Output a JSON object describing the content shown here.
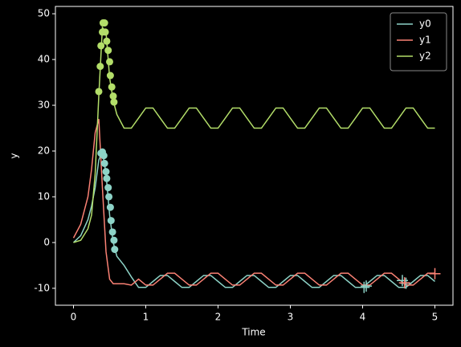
{
  "chart_data": {
    "type": "line",
    "xlabel": "Time",
    "ylabel": "y",
    "x": [
      0,
      0.1,
      0.2,
      0.25,
      0.3,
      0.35,
      0.4,
      0.45,
      0.5,
      0.55,
      0.6,
      0.7,
      0.8,
      0.9,
      1.0,
      1.1,
      1.2,
      1.3,
      1.4,
      1.5,
      1.6,
      1.7,
      1.8,
      1.9,
      2.0,
      2.1,
      2.2,
      2.3,
      2.4,
      2.5,
      2.6,
      2.7,
      2.8,
      2.9,
      3.0,
      3.1,
      3.2,
      3.3,
      3.4,
      3.5,
      3.6,
      3.7,
      3.8,
      3.9,
      4.0,
      4.1,
      4.2,
      4.3,
      4.4,
      4.5,
      4.6,
      4.7,
      4.8,
      4.9,
      5.0
    ],
    "series": [
      {
        "name": "y0",
        "color": "#8dd3c7",
        "values": [
          0,
          1.5,
          5,
          8,
          12,
          18,
          20,
          15,
          6,
          0,
          -3,
          -5,
          -7.5,
          -9.8,
          -9.8,
          -8.5,
          -7.2,
          -7.2,
          -8.5,
          -9.8,
          -9.8,
          -8.5,
          -7.2,
          -7.2,
          -8.5,
          -9.8,
          -9.8,
          -8.5,
          -7.2,
          -7.2,
          -8.5,
          -9.8,
          -9.8,
          -8.5,
          -7.2,
          -7.2,
          -8.5,
          -9.8,
          -9.8,
          -8.5,
          -7.2,
          -7.2,
          -8.5,
          -9.8,
          -9.8,
          -8.5,
          -7.2,
          -7.2,
          -8.5,
          -9.8,
          -9.8,
          -8.5,
          -7.2,
          -7.2,
          -8.5
        ]
      },
      {
        "name": "y1",
        "color": "#fa8174",
        "values": [
          1,
          4,
          10,
          16,
          24,
          27,
          12,
          -2,
          -8,
          -9,
          -9,
          -9,
          -9.3,
          -8,
          -9.3,
          -9.3,
          -8,
          -6.7,
          -6.7,
          -8,
          -9.3,
          -9.3,
          -8,
          -6.7,
          -6.7,
          -8,
          -9.3,
          -9.3,
          -8,
          -6.7,
          -6.7,
          -8,
          -9.3,
          -9.3,
          -8,
          -6.7,
          -6.7,
          -8,
          -9.3,
          -9.3,
          -8,
          -6.7,
          -6.7,
          -8,
          -9.3,
          -9.3,
          -8,
          -6.7,
          -6.7,
          -8,
          -9.3,
          -9.3,
          -8,
          -6.7,
          -6.7
        ]
      },
      {
        "name": "y2",
        "color": "#b3de69",
        "values": [
          0,
          0.5,
          3,
          6,
          15,
          32,
          47,
          46,
          36,
          31,
          28,
          25,
          25,
          27.2,
          29.4,
          29.4,
          27.2,
          25,
          25,
          27.2,
          29.4,
          29.4,
          27.2,
          25,
          25,
          27.2,
          29.4,
          29.4,
          27.2,
          25,
          25,
          27.2,
          29.4,
          29.4,
          27.2,
          25,
          25,
          27.2,
          29.4,
          29.4,
          27.2,
          25,
          25,
          27.2,
          29.4,
          29.4,
          27.2,
          25,
          25,
          27.2,
          29.4,
          29.4,
          27.2,
          25,
          25
        ]
      }
    ],
    "markers": [
      {
        "marker": "circle",
        "color": "#b3de69",
        "x": [
          0.35,
          0.37,
          0.38,
          0.4,
          0.41,
          0.43,
          0.44,
          0.46,
          0.48,
          0.5,
          0.51,
          0.53,
          0.55,
          0.56
        ],
        "y": [
          33,
          38.5,
          43,
          46,
          48,
          48,
          46,
          44,
          42,
          39.5,
          36.5,
          34,
          32,
          30.7
        ]
      },
      {
        "marker": "circle",
        "color": "#8dd3c7",
        "x": [
          0.38,
          0.4,
          0.42,
          0.43,
          0.45,
          0.46,
          0.48,
          0.49,
          0.51,
          0.52,
          0.54,
          0.56,
          0.57
        ],
        "y": [
          19.5,
          19.8,
          19,
          17.3,
          15.5,
          14,
          12,
          10,
          7.7,
          4.8,
          2.3,
          0.5,
          -1.5
        ]
      },
      {
        "marker": "plus",
        "color": "#8dd3c7",
        "x": [
          4.02,
          4.05,
          4.55,
          4.6
        ],
        "y": [
          -9.8,
          -9.5,
          -8.3,
          -8.9
        ]
      },
      {
        "marker": "plus",
        "color": "#fa8174",
        "x": [
          5.0,
          4.58
        ],
        "y": [
          -6.8,
          -8.8
        ]
      }
    ],
    "xlim": [
      -0.25,
      5.25
    ],
    "ylim": [
      -13.7,
      51.6
    ],
    "xticks": [
      0,
      1,
      2,
      3,
      4,
      5
    ],
    "yticks": [
      -10,
      0,
      10,
      20,
      30,
      40,
      50
    ],
    "legend": "upper right"
  }
}
